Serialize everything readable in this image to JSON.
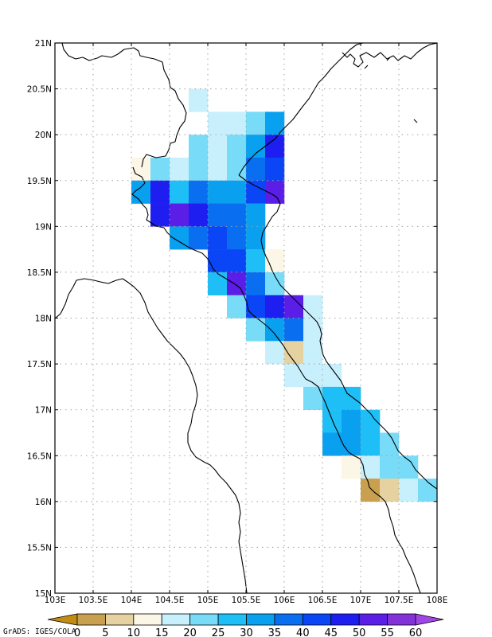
{
  "map": {
    "lat_ticks": [
      "15N",
      "15.5N",
      "16N",
      "16.5N",
      "17N",
      "17.5N",
      "18N",
      "18.5N",
      "19N",
      "19.5N",
      "20N",
      "20.5N",
      "21N"
    ],
    "lon_ticks": [
      "103E",
      "103.5E",
      "104E",
      "104.5E",
      "105E",
      "105.5E",
      "106E",
      "106.5E",
      "107E",
      "107.5E",
      "108E"
    ],
    "lon_range": [
      103,
      108
    ],
    "lat_range": [
      15,
      21
    ],
    "cell_size_deg": 0.25,
    "gridlines": "dotted",
    "cells": [
      {
        "lon": 104.75,
        "lat": 20.25,
        "bin": 3
      },
      {
        "lon": 105.0,
        "lat": 20.0,
        "bin": 3
      },
      {
        "lon": 105.25,
        "lat": 20.0,
        "bin": 3
      },
      {
        "lon": 105.5,
        "lat": 20.0,
        "bin": 4
      },
      {
        "lon": 105.75,
        "lat": 20.0,
        "bin": 6
      },
      {
        "lon": 104.75,
        "lat": 19.75,
        "bin": 4
      },
      {
        "lon": 105.0,
        "lat": 19.75,
        "bin": 3
      },
      {
        "lon": 105.25,
        "lat": 19.75,
        "bin": 4
      },
      {
        "lon": 105.5,
        "lat": 19.75,
        "bin": 6
      },
      {
        "lon": 105.75,
        "lat": 19.75,
        "bin": 9
      },
      {
        "lon": 104.0,
        "lat": 19.5,
        "bin": 2
      },
      {
        "lon": 104.25,
        "lat": 19.5,
        "bin": 4
      },
      {
        "lon": 104.5,
        "lat": 19.5,
        "bin": 3
      },
      {
        "lon": 104.75,
        "lat": 19.5,
        "bin": 4
      },
      {
        "lon": 105.0,
        "lat": 19.5,
        "bin": 3
      },
      {
        "lon": 105.25,
        "lat": 19.5,
        "bin": 4
      },
      {
        "lon": 105.5,
        "lat": 19.5,
        "bin": 7
      },
      {
        "lon": 105.75,
        "lat": 19.5,
        "bin": 8
      },
      {
        "lon": 104.0,
        "lat": 19.25,
        "bin": 6
      },
      {
        "lon": 104.25,
        "lat": 19.25,
        "bin": 9
      },
      {
        "lon": 104.5,
        "lat": 19.25,
        "bin": 5
      },
      {
        "lon": 104.75,
        "lat": 19.25,
        "bin": 7
      },
      {
        "lon": 105.0,
        "lat": 19.25,
        "bin": 6
      },
      {
        "lon": 105.25,
        "lat": 19.25,
        "bin": 6
      },
      {
        "lon": 105.5,
        "lat": 19.25,
        "bin": 8
      },
      {
        "lon": 105.75,
        "lat": 19.25,
        "bin": 10
      },
      {
        "lon": 104.25,
        "lat": 19.0,
        "bin": 9
      },
      {
        "lon": 104.5,
        "lat": 19.0,
        "bin": 10
      },
      {
        "lon": 104.75,
        "lat": 19.0,
        "bin": 9
      },
      {
        "lon": 105.0,
        "lat": 19.0,
        "bin": 7
      },
      {
        "lon": 105.25,
        "lat": 19.0,
        "bin": 7
      },
      {
        "lon": 105.5,
        "lat": 19.0,
        "bin": 6
      },
      {
        "lon": 104.5,
        "lat": 18.75,
        "bin": 6
      },
      {
        "lon": 104.75,
        "lat": 18.75,
        "bin": 7
      },
      {
        "lon": 105.0,
        "lat": 18.75,
        "bin": 8
      },
      {
        "lon": 105.25,
        "lat": 18.75,
        "bin": 7
      },
      {
        "lon": 105.5,
        "lat": 18.75,
        "bin": 6
      },
      {
        "lon": 105.0,
        "lat": 18.5,
        "bin": 8
      },
      {
        "lon": 105.25,
        "lat": 18.5,
        "bin": 8
      },
      {
        "lon": 105.5,
        "lat": 18.5,
        "bin": 5
      },
      {
        "lon": 105.75,
        "lat": 18.5,
        "bin": 2
      },
      {
        "lon": 105.0,
        "lat": 18.25,
        "bin": 5
      },
      {
        "lon": 105.25,
        "lat": 18.25,
        "bin": 10
      },
      {
        "lon": 105.5,
        "lat": 18.25,
        "bin": 7
      },
      {
        "lon": 105.75,
        "lat": 18.25,
        "bin": 4
      },
      {
        "lon": 105.25,
        "lat": 18.0,
        "bin": 4
      },
      {
        "lon": 105.5,
        "lat": 18.0,
        "bin": 8
      },
      {
        "lon": 105.75,
        "lat": 18.0,
        "bin": 9
      },
      {
        "lon": 106.0,
        "lat": 18.0,
        "bin": 10
      },
      {
        "lon": 106.25,
        "lat": 18.0,
        "bin": 3
      },
      {
        "lon": 105.5,
        "lat": 17.75,
        "bin": 4
      },
      {
        "lon": 105.75,
        "lat": 17.75,
        "bin": 6
      },
      {
        "lon": 106.0,
        "lat": 17.75,
        "bin": 7
      },
      {
        "lon": 106.25,
        "lat": 17.75,
        "bin": 3
      },
      {
        "lon": 105.75,
        "lat": 17.5,
        "bin": 3
      },
      {
        "lon": 106.0,
        "lat": 17.5,
        "bin": 1
      },
      {
        "lon": 106.25,
        "lat": 17.5,
        "bin": 3
      },
      {
        "lon": 106.0,
        "lat": 17.25,
        "bin": 3
      },
      {
        "lon": 106.25,
        "lat": 17.25,
        "bin": 3
      },
      {
        "lon": 106.5,
        "lat": 17.25,
        "bin": 3
      },
      {
        "lon": 106.25,
        "lat": 17.0,
        "bin": 4
      },
      {
        "lon": 106.5,
        "lat": 17.0,
        "bin": 5
      },
      {
        "lon": 106.75,
        "lat": 17.0,
        "bin": 5
      },
      {
        "lon": 106.5,
        "lat": 16.75,
        "bin": 5
      },
      {
        "lon": 106.75,
        "lat": 16.75,
        "bin": 6
      },
      {
        "lon": 107.0,
        "lat": 16.75,
        "bin": 5
      },
      {
        "lon": 106.5,
        "lat": 16.5,
        "bin": 6
      },
      {
        "lon": 106.75,
        "lat": 16.5,
        "bin": 6
      },
      {
        "lon": 107.0,
        "lat": 16.5,
        "bin": 5
      },
      {
        "lon": 107.25,
        "lat": 16.5,
        "bin": 4
      },
      {
        "lon": 106.75,
        "lat": 16.25,
        "bin": 2
      },
      {
        "lon": 107.0,
        "lat": 16.25,
        "bin": 3
      },
      {
        "lon": 107.25,
        "lat": 16.25,
        "bin": 4
      },
      {
        "lon": 107.5,
        "lat": 16.25,
        "bin": 4
      },
      {
        "lon": 107.0,
        "lat": 16.0,
        "bin": 0
      },
      {
        "lon": 107.25,
        "lat": 16.0,
        "bin": 1
      },
      {
        "lon": 107.5,
        "lat": 16.0,
        "bin": 3
      },
      {
        "lon": 107.75,
        "lat": 16.0,
        "bin": 4
      }
    ]
  },
  "colorbar": {
    "labels": [
      "0",
      "5",
      "10",
      "15",
      "20",
      "25",
      "30",
      "35",
      "40",
      "45",
      "50",
      "55",
      "60"
    ],
    "under_color": "#c08c14",
    "over_color": "#a046e6",
    "colors": [
      "#c8a050",
      "#e6d2a0",
      "#fcf6e6",
      "#c8f0fc",
      "#78dcf8",
      "#1ebef6",
      "#0aa0f0",
      "#0a6ef0",
      "#0a46f5",
      "#1e1ef0",
      "#5a1ee6",
      "#8232d8"
    ]
  },
  "credit": "GrADS: IGES/COLA"
}
